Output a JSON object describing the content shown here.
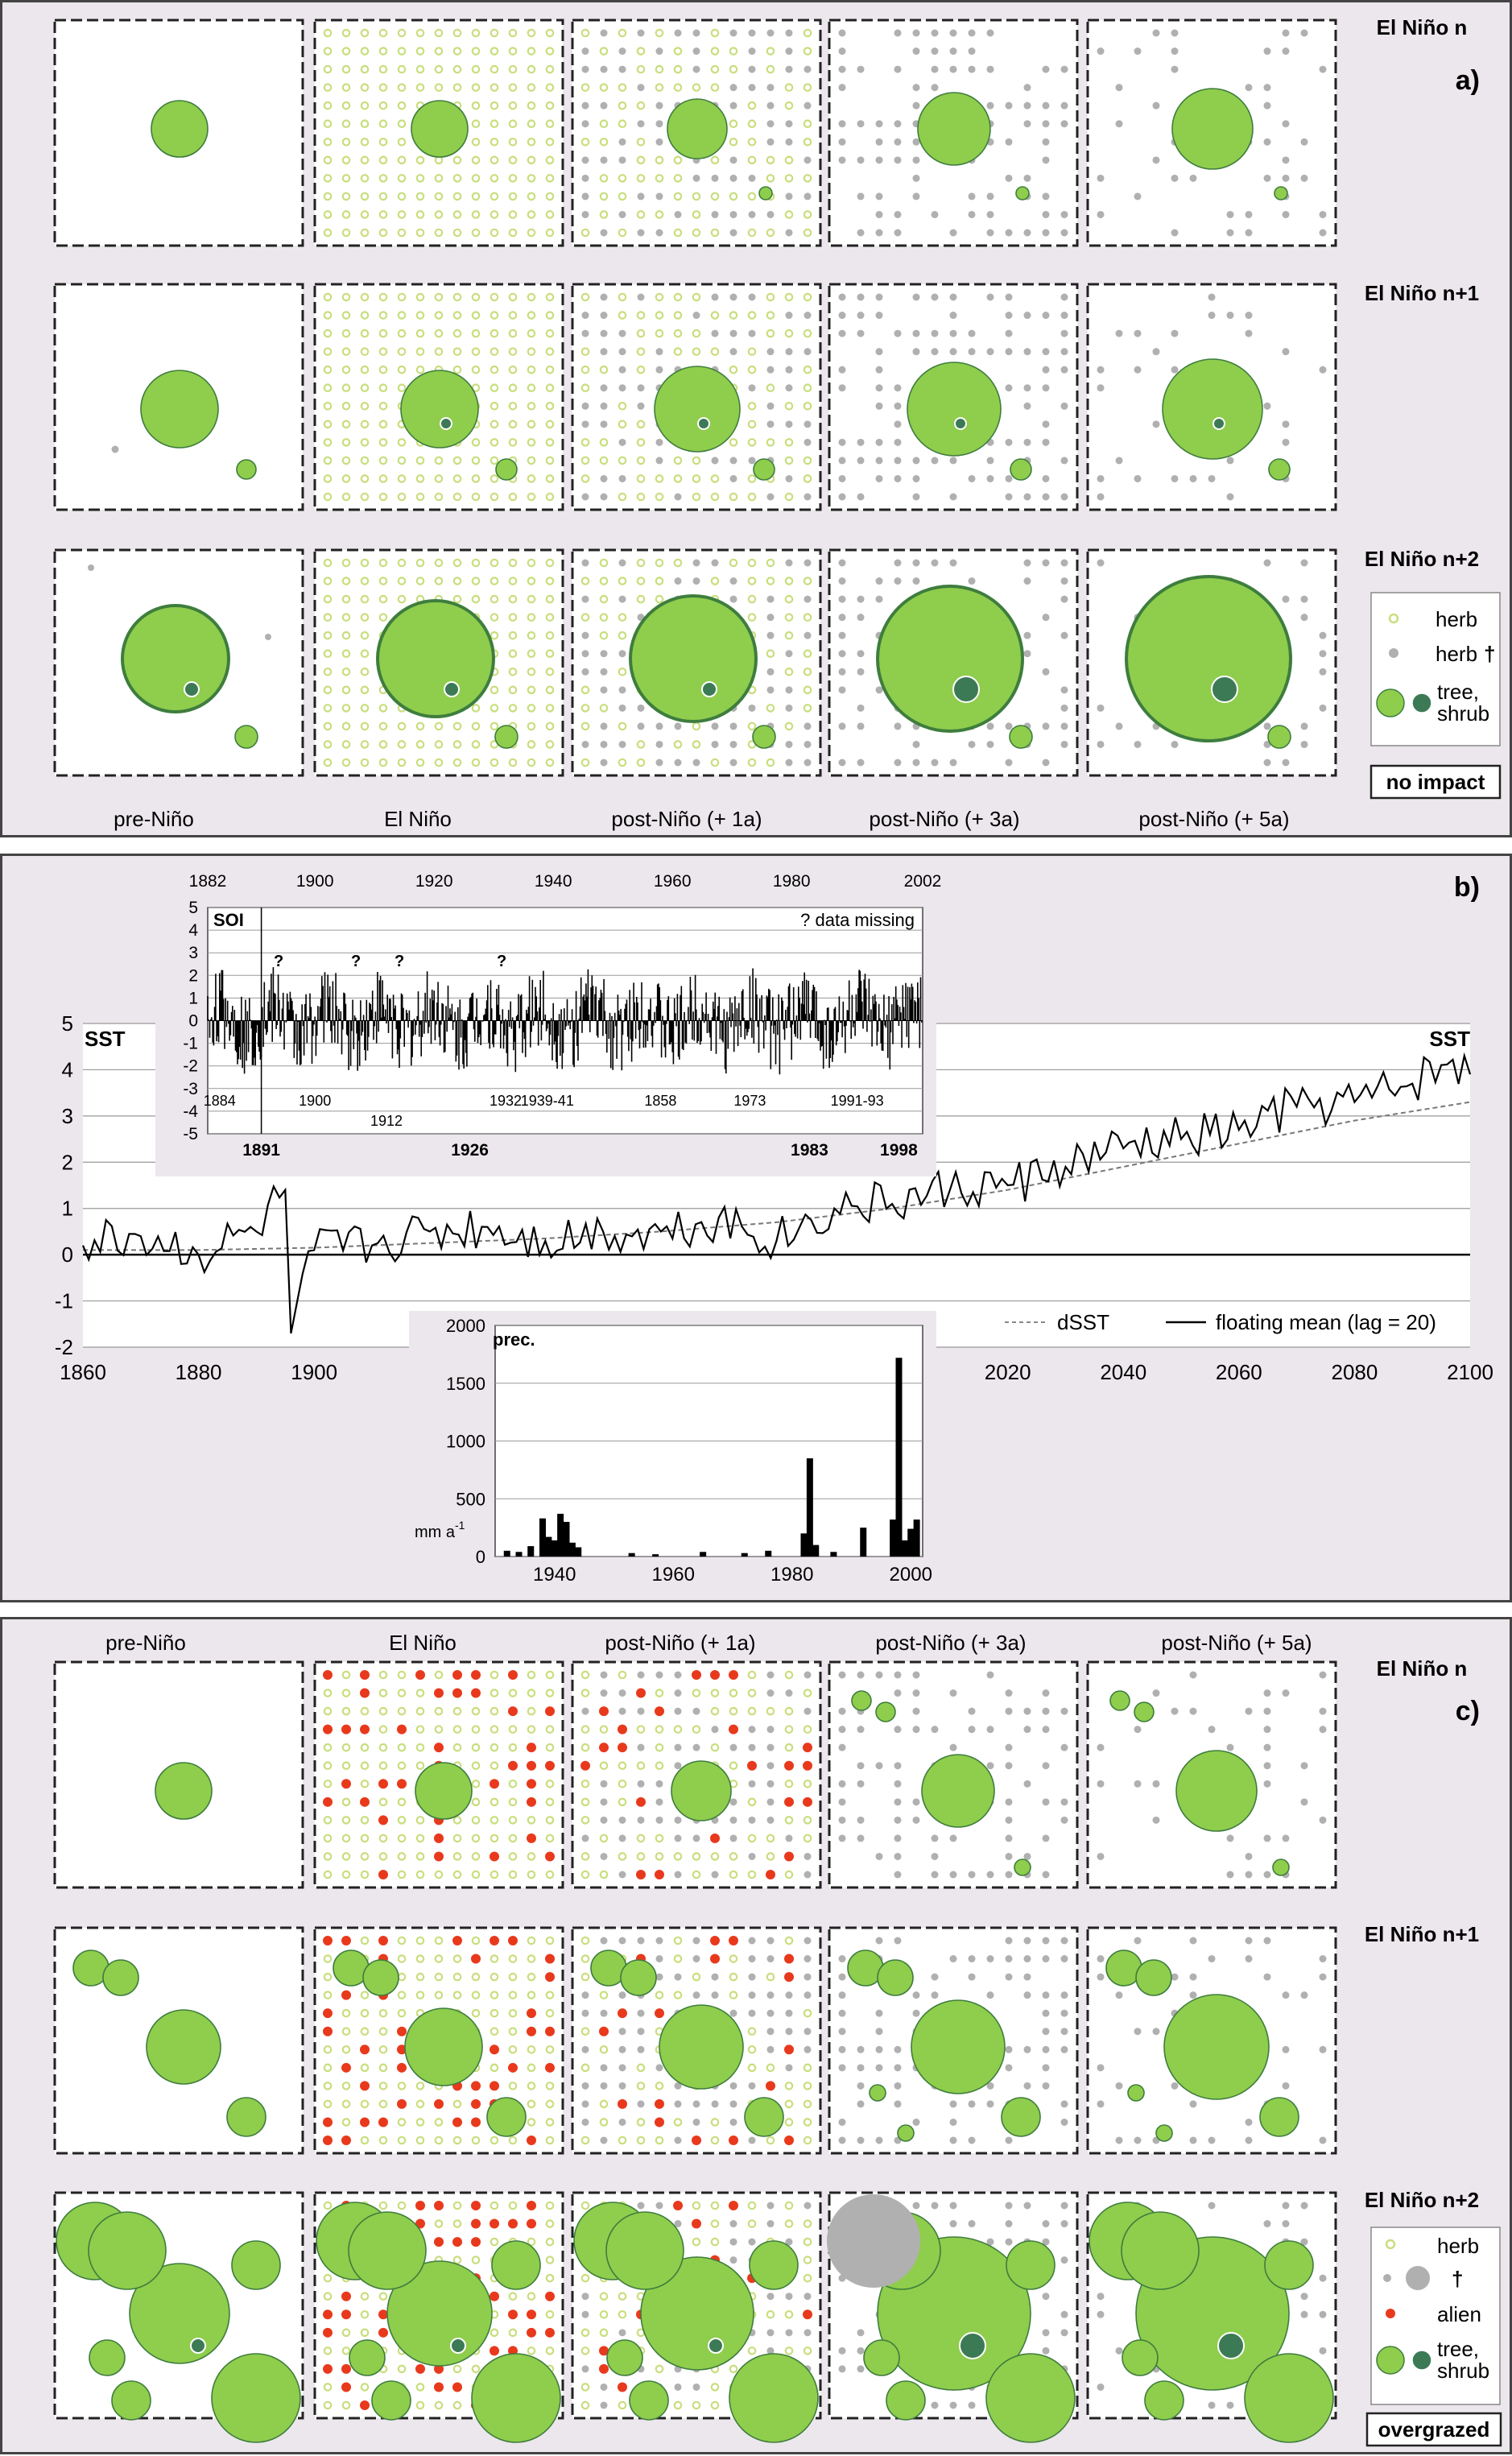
{
  "panel_a": {
    "label": "a)",
    "row_labels": [
      "El Niño n",
      "El Niño n+1",
      "El Niño n+2"
    ],
    "col_labels": [
      "pre-Niño",
      "El Niño",
      "post-Niño (+ 1a)",
      "post-Niño (+ 3a)",
      "post-Niño (+ 5a)"
    ],
    "legend": {
      "herb": "herb",
      "herb_dead": "herb",
      "dagger": "†",
      "tree": "tree,",
      "shrub": "shrub"
    },
    "box_label": "no impact"
  },
  "panel_b": {
    "label": "b)",
    "sst_left": "SST",
    "sst_right": "SST",
    "legend_dsst": "dSST",
    "legend_mean": "floating mean (lag = 20)",
    "soi_label": "SOI",
    "missing_note": "? data missing",
    "missing_marker": "?",
    "prec_label": "prec.",
    "prec_unit": "mm a",
    "prec_unit_sup": "-1"
  },
  "panel_c": {
    "label": "c)",
    "row_labels": [
      "El Niño n",
      "El Niño n+1",
      "El Niño n+2"
    ],
    "col_labels": [
      "pre-Niño",
      "El Niño",
      "post-Niño (+ 1a)",
      "post-Niño (+ 3a)",
      "post-Niño (+ 5a)"
    ],
    "legend": {
      "herb": "herb",
      "dagger": "†",
      "alien": "alien",
      "tree": "tree,",
      "shrub": "shrub"
    },
    "box_label": "overgrazed"
  },
  "colors": {
    "tree": "#8fcd4c",
    "tree_edge": "#3e7d3e",
    "shrub": "#3c7a56",
    "herb_dead": "#b0b0b0",
    "herb": "#c9de7e",
    "alien": "#e8391c",
    "panel_bg": "#ece7ec"
  },
  "chart_data": [
    {
      "type": "line",
      "title": "",
      "xlabel": "",
      "ylabel": "SST",
      "xlim": [
        1860,
        2100
      ],
      "ylim": [
        -2,
        5
      ],
      "xticks": [
        1860,
        1880,
        1900,
        2020,
        2040,
        2060,
        2080,
        2100
      ],
      "yticks": [
        -2,
        -1,
        0,
        1,
        2,
        3,
        4,
        5
      ],
      "series": [
        {
          "name": "dSST",
          "style": "dashed",
          "x": [
            1860,
            1880,
            1900,
            1920,
            1940,
            1960,
            1980,
            2000,
            2020,
            2040,
            2060,
            2080,
            2100
          ],
          "y": [
            0.1,
            0.1,
            0.15,
            0.25,
            0.35,
            0.5,
            0.7,
            1.0,
            1.4,
            1.9,
            2.4,
            2.9,
            3.3
          ]
        },
        {
          "name": "floating mean (lag = 20)",
          "style": "solid",
          "x": [
            1860,
            1870,
            1880,
            1890,
            1895,
            1896,
            1900,
            1910,
            1920,
            1930,
            1940,
            1950,
            1960,
            1970,
            1980,
            1990,
            2000,
            2010,
            2020,
            2030,
            2040,
            2050,
            2060,
            2070,
            2080,
            2090,
            2095,
            2100
          ],
          "y": [
            0.2,
            0.4,
            0.0,
            0.5,
            1.4,
            -1.7,
            0.1,
            0.2,
            0.5,
            0.6,
            0.3,
            0.5,
            0.5,
            0.8,
            0.3,
            1.0,
            1.1,
            1.4,
            1.5,
            1.9,
            2.3,
            2.5,
            2.7,
            3.2,
            3.3,
            3.7,
            4.1,
            3.9
          ]
        }
      ]
    },
    {
      "type": "bar",
      "title": "SOI",
      "xlim": [
        1882,
        2002
      ],
      "ylim": [
        -5,
        5
      ],
      "xticks": [
        1882,
        1900,
        1920,
        1940,
        1960,
        1980,
        2002
      ],
      "yticks": [
        -5,
        -4,
        -3,
        -2,
        -1,
        0,
        1,
        2,
        3,
        4,
        5
      ],
      "annotations": [
        "1884",
        "1900",
        "1912",
        "1932",
        "1939-41",
        "1858",
        "1973",
        "1991-93"
      ],
      "bold_years": [
        "1891",
        "1926",
        "1983",
        "1998"
      ]
    },
    {
      "type": "bar",
      "title": "prec.",
      "ylabel": "mm a-1",
      "xlim": [
        1930,
        2002
      ],
      "ylim": [
        0,
        2000
      ],
      "xticks": [
        1940,
        1960,
        1980,
        2000
      ],
      "yticks": [
        0,
        500,
        1000,
        1500,
        2000
      ],
      "x": [
        1932,
        1934,
        1936,
        1938,
        1939,
        1940,
        1941,
        1942,
        1943,
        1944,
        1953,
        1957,
        1965,
        1972,
        1976,
        1982,
        1983,
        1984,
        1987,
        1992,
        1997,
        1998,
        1999,
        2000,
        2001
      ],
      "values": [
        50,
        40,
        90,
        330,
        170,
        140,
        370,
        300,
        120,
        80,
        30,
        20,
        40,
        30,
        50,
        200,
        850,
        100,
        40,
        250,
        320,
        1720,
        140,
        240,
        320
      ]
    }
  ]
}
